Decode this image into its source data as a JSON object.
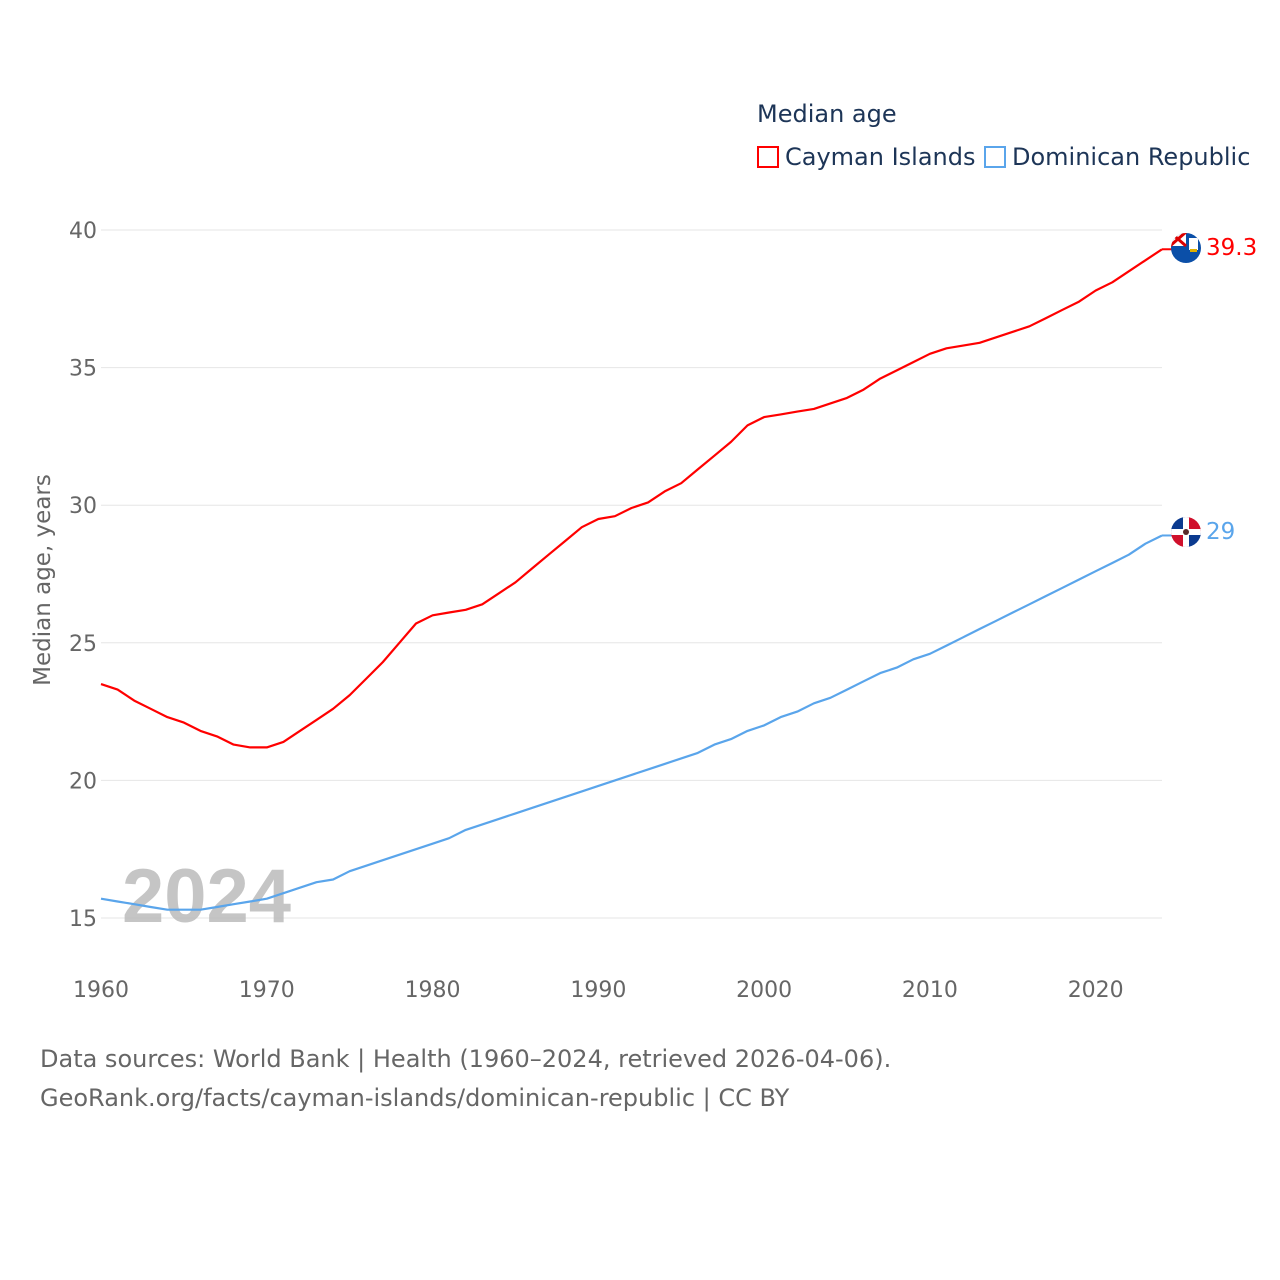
{
  "chart_data": {
    "type": "line",
    "title": "Median age",
    "ylabel": "Median age, years",
    "xlabel": "",
    "xlim": [
      1960,
      2024
    ],
    "ylim": [
      15,
      40
    ],
    "x_ticks": [
      1960,
      1970,
      1980,
      1990,
      2000,
      2010,
      2020
    ],
    "y_ticks": [
      15,
      20,
      25,
      30,
      35,
      40
    ],
    "grid": "horizontal",
    "legend_position": "top-right",
    "year_overlay": "2024",
    "x": [
      1960,
      1961,
      1962,
      1963,
      1964,
      1965,
      1966,
      1967,
      1968,
      1969,
      1970,
      1971,
      1972,
      1973,
      1974,
      1975,
      1976,
      1977,
      1978,
      1979,
      1980,
      1981,
      1982,
      1983,
      1984,
      1985,
      1986,
      1987,
      1988,
      1989,
      1990,
      1991,
      1992,
      1993,
      1994,
      1995,
      1996,
      1997,
      1998,
      1999,
      2000,
      2001,
      2002,
      2003,
      2004,
      2005,
      2006,
      2007,
      2008,
      2009,
      2010,
      2011,
      2012,
      2013,
      2014,
      2015,
      2016,
      2017,
      2018,
      2019,
      2020,
      2021,
      2022,
      2023,
      2024
    ],
    "series": [
      {
        "name": "Cayman Islands",
        "color": "#ff0000",
        "end_label": "39.3",
        "values": [
          23.5,
          23.3,
          22.9,
          22.6,
          22.3,
          22.1,
          21.8,
          21.6,
          21.3,
          21.2,
          21.2,
          21.4,
          21.8,
          22.2,
          22.6,
          23.1,
          23.7,
          24.3,
          25.0,
          25.7,
          26.0,
          26.1,
          26.2,
          26.4,
          26.8,
          27.2,
          27.7,
          28.2,
          28.7,
          29.2,
          29.5,
          29.6,
          29.9,
          30.1,
          30.5,
          30.8,
          31.3,
          31.8,
          32.3,
          32.9,
          33.2,
          33.3,
          33.4,
          33.5,
          33.7,
          33.9,
          34.2,
          34.6,
          34.9,
          35.2,
          35.5,
          35.7,
          35.8,
          35.9,
          36.1,
          36.3,
          36.5,
          36.8,
          37.1,
          37.4,
          37.8,
          38.1,
          38.5,
          38.9,
          39.3
        ]
      },
      {
        "name": "Dominican Republic",
        "color": "#5aa5eb",
        "end_label": "29",
        "values": [
          15.7,
          15.6,
          15.5,
          15.4,
          15.3,
          15.3,
          15.3,
          15.4,
          15.5,
          15.6,
          15.7,
          15.9,
          16.1,
          16.3,
          16.4,
          16.7,
          16.9,
          17.1,
          17.3,
          17.5,
          17.7,
          17.9,
          18.2,
          18.4,
          18.6,
          18.8,
          19.0,
          19.2,
          19.4,
          19.6,
          19.8,
          20.0,
          20.2,
          20.4,
          20.6,
          20.8,
          21.0,
          21.3,
          21.5,
          21.8,
          22.0,
          22.3,
          22.5,
          22.8,
          23.0,
          23.3,
          23.6,
          23.9,
          24.1,
          24.4,
          24.6,
          24.9,
          25.2,
          25.5,
          25.8,
          26.1,
          26.4,
          26.7,
          27.0,
          27.3,
          27.6,
          27.9,
          28.2,
          28.6,
          28.9
        ]
      }
    ]
  },
  "footer": {
    "source": "Data sources: World Bank | Health (1960–2024, retrieved 2026-04-06).",
    "credit": "GeoRank.org/facts/cayman-islands/dominican-republic | CC BY"
  }
}
